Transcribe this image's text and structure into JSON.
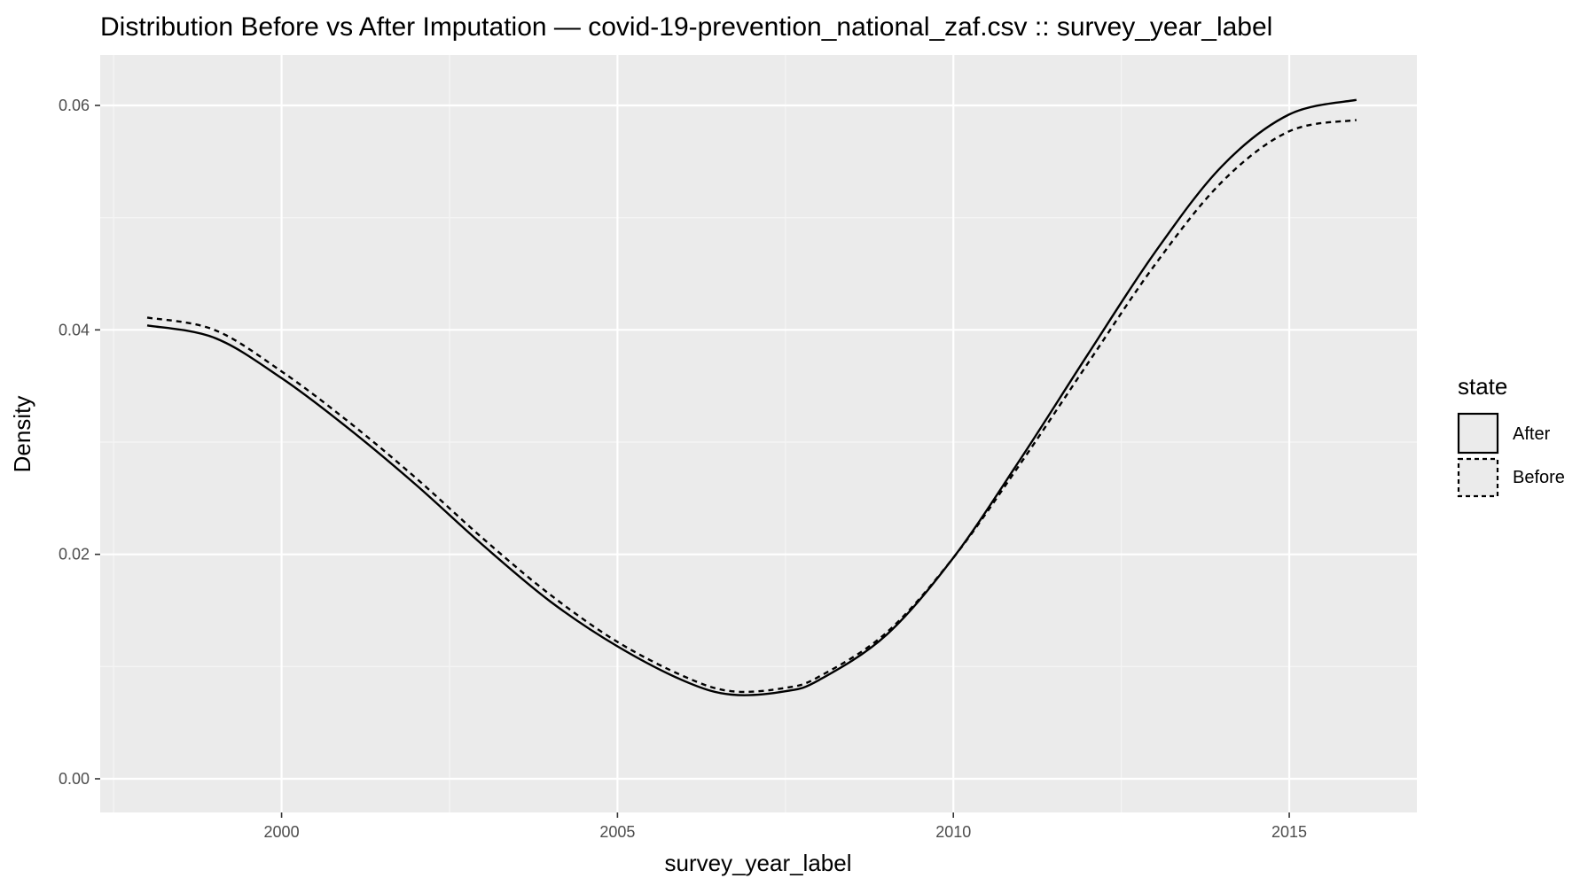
{
  "chart_data": {
    "type": "line",
    "title": "Distribution Before vs After Imputation — covid-19-prevention_national_zaf.csv :: survey_year_label",
    "xlabel": "survey_year_label",
    "ylabel": "Density",
    "xlim": [
      1997.3,
      2016.9
    ],
    "ylim": [
      -0.003,
      0.0645
    ],
    "x_ticks": [
      2000,
      2005,
      2010,
      2015
    ],
    "x_tick_labels": [
      "2000",
      "2005",
      "2010",
      "2015"
    ],
    "y_ticks": [
      0.0,
      0.02,
      0.04,
      0.06
    ],
    "y_tick_labels": [
      "0.00",
      "0.02",
      "0.04",
      "0.06"
    ],
    "grid": true,
    "legend": {
      "title": "state",
      "position": "right",
      "entries": [
        {
          "label": "After",
          "linetype": "solid"
        },
        {
          "label": "Before",
          "linetype": "dashed"
        }
      ]
    },
    "series": [
      {
        "name": "After",
        "linetype": "solid",
        "color": "#000000",
        "x": [
          1998,
          1999,
          2000,
          2001,
          2002,
          2003,
          2004,
          2005,
          2006,
          2006.7,
          2007.5,
          2008,
          2009,
          2010,
          2011,
          2012,
          2013,
          2014,
          2015,
          2016
        ],
        "y": [
          0.0404,
          0.0393,
          0.0357,
          0.0312,
          0.0262,
          0.0208,
          0.0158,
          0.0118,
          0.0087,
          0.0075,
          0.0078,
          0.0088,
          0.0128,
          0.0197,
          0.0285,
          0.0378,
          0.0469,
          0.0546,
          0.0592,
          0.0605
        ]
      },
      {
        "name": "Before",
        "linetype": "dashed",
        "color": "#000000",
        "x": [
          1998,
          1999,
          2000,
          2001,
          2002,
          2003,
          2004,
          2005,
          2006,
          2006.7,
          2007.5,
          2008,
          2009,
          2010,
          2011,
          2012,
          2013,
          2014,
          2015,
          2016
        ],
        "y": [
          0.0411,
          0.04,
          0.0363,
          0.0318,
          0.0268,
          0.0214,
          0.0164,
          0.0122,
          0.0091,
          0.0078,
          0.0081,
          0.0091,
          0.013,
          0.0197,
          0.0281,
          0.037,
          0.0458,
          0.0532,
          0.0577,
          0.0587
        ]
      }
    ],
    "colors": {
      "panel_background": "#ebebeb",
      "grid_major": "#ffffff",
      "grid_minor": "#f5f5f5",
      "line": "#000000",
      "tick_label": "#4d4d4d"
    }
  }
}
